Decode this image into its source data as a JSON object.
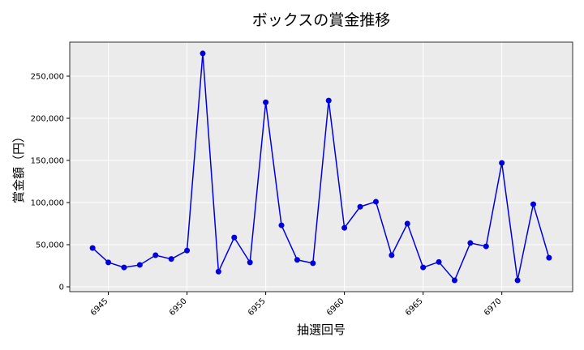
{
  "chart_data": {
    "type": "line",
    "title": "ボックスの賞金推移",
    "x_label": "抽選回号",
    "y_label": "賞金額（円）",
    "x": [
      6944,
      6945,
      6946,
      6947,
      6948,
      6949,
      6950,
      6951,
      6952,
      6953,
      6954,
      6955,
      6956,
      6957,
      6958,
      6959,
      6960,
      6961,
      6962,
      6963,
      6964,
      6965,
      6966,
      6967,
      6968,
      6969,
      6970,
      6971,
      6972,
      6973
    ],
    "series": [
      {
        "name": "賞金",
        "color": "#0000dd",
        "values": [
          46000,
          29000,
          23000,
          26000,
          37500,
          33000,
          43000,
          277000,
          18000,
          58500,
          29000,
          219000,
          73000,
          32000,
          28000,
          221000,
          70000,
          95000,
          101000,
          37500,
          75000,
          23000,
          29500,
          7700,
          52000,
          48000,
          147000,
          7700,
          98000,
          34500
        ]
      }
    ],
    "xlim": [
      6942.55,
      6974.5
    ],
    "ylim": [
      -5770,
      290385
    ],
    "xticks": [
      6945,
      6950,
      6955,
      6960,
      6965,
      6970
    ],
    "yticks": [
      0,
      {
        "value": 50000,
        "label": "50,000"
      },
      {
        "value": 100000,
        "label": "100,000"
      },
      {
        "value": 150000,
        "label": "150,000"
      },
      {
        "value": 200000,
        "label": "200,000"
      },
      {
        "value": 250000,
        "label": "250,000"
      }
    ],
    "grid": true
  }
}
